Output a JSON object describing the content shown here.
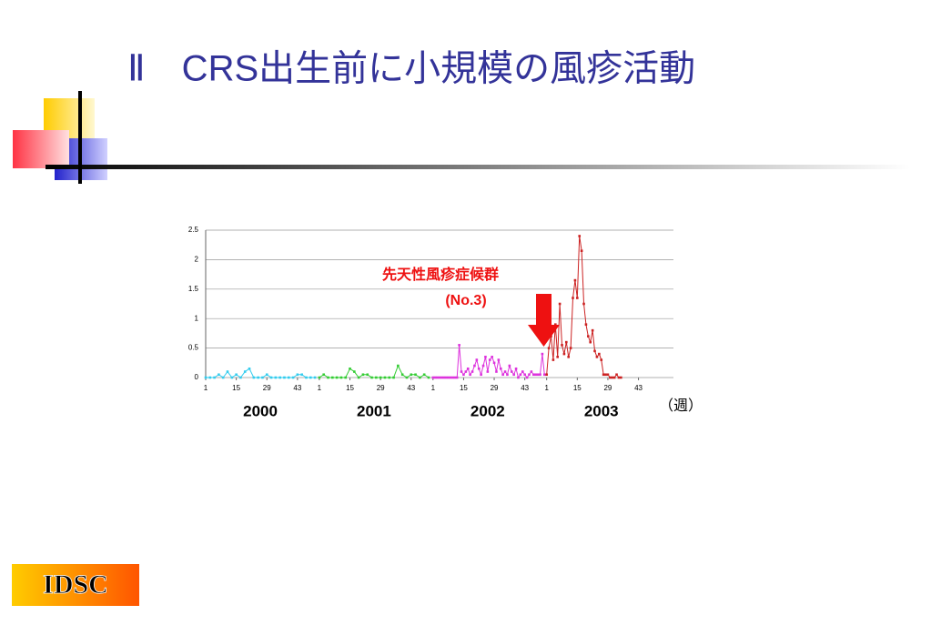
{
  "slide": {
    "title": "Ⅱ　CRS出生前に小規模の風疹活動",
    "logo": "IDSC"
  },
  "chart_data": {
    "type": "line",
    "annotation": [
      "先天性風疹症候群",
      "(No.3)"
    ],
    "x_label": "（週）",
    "year_labels": [
      "2000",
      "2001",
      "2002",
      "2003"
    ],
    "xlim": [
      1,
      215
    ],
    "xticks": [
      1,
      15,
      29,
      43,
      {
        "value": 53,
        "label": "1"
      },
      {
        "value": 67,
        "label": "15"
      },
      {
        "value": 81,
        "label": "29"
      },
      {
        "value": 95,
        "label": "43"
      },
      {
        "value": 105,
        "label": "1"
      },
      {
        "value": 119,
        "label": "15"
      },
      {
        "value": 133,
        "label": "29"
      },
      {
        "value": 147,
        "label": "43"
      },
      {
        "value": 157,
        "label": "1"
      },
      {
        "value": 171,
        "label": "15"
      },
      {
        "value": 185,
        "label": "29"
      },
      {
        "value": 199,
        "label": "43"
      }
    ],
    "ylim": [
      0,
      2.5
    ],
    "yticks": [
      0,
      0.5,
      1,
      1.5,
      2,
      2.5
    ],
    "grid": true,
    "series": [
      {
        "name": "2000",
        "color": "#33ccee",
        "x": [
          1,
          3,
          5,
          7,
          9,
          11,
          13,
          15,
          17,
          19,
          21,
          23,
          25,
          27,
          29,
          31,
          33,
          35,
          37,
          39,
          41,
          43,
          45,
          47,
          49,
          51
        ],
        "values": [
          0,
          0,
          0,
          0.05,
          0,
          0.1,
          0,
          0.05,
          0,
          0.1,
          0.15,
          0,
          0,
          0,
          0.05,
          0,
          0,
          0,
          0,
          0,
          0,
          0.05,
          0.05,
          0,
          0,
          0
        ]
      },
      {
        "name": "2001",
        "color": "#33cc33",
        "x": [
          53,
          55,
          57,
          59,
          61,
          63,
          65,
          67,
          69,
          71,
          73,
          75,
          77,
          79,
          81,
          83,
          85,
          87,
          89,
          91,
          93,
          95,
          97,
          99,
          101,
          103
        ],
        "values": [
          0,
          0.05,
          0,
          0,
          0,
          0,
          0,
          0.15,
          0.1,
          0,
          0.05,
          0.05,
          0,
          0,
          0,
          0,
          0,
          0,
          0.2,
          0.05,
          0,
          0.05,
          0.05,
          0,
          0.05,
          0
        ]
      },
      {
        "name": "2002",
        "color": "#dd33dd",
        "x": [
          105,
          106,
          107,
          108,
          109,
          110,
          111,
          112,
          113,
          114,
          115,
          116,
          117,
          118,
          119,
          120,
          121,
          122,
          123,
          124,
          125,
          126,
          127,
          128,
          129,
          130,
          131,
          132,
          133,
          134,
          135,
          136,
          137,
          138,
          139,
          140,
          141,
          142,
          143,
          144,
          145,
          146,
          147,
          148,
          149,
          150,
          151,
          152,
          153,
          154,
          155,
          156
        ],
        "values": [
          0,
          0,
          0,
          0,
          0,
          0,
          0,
          0,
          0,
          0,
          0,
          0,
          0.55,
          0.1,
          0.05,
          0.1,
          0.15,
          0.05,
          0.1,
          0.2,
          0.3,
          0.15,
          0.05,
          0.2,
          0.35,
          0.1,
          0.3,
          0.35,
          0.25,
          0.1,
          0.3,
          0.15,
          0.05,
          0.1,
          0.05,
          0.2,
          0.1,
          0.05,
          0.15,
          0,
          0.05,
          0.1,
          0.05,
          0,
          0.05,
          0.1,
          0.05,
          0.05,
          0.05,
          0.05,
          0.4,
          0.05
        ]
      },
      {
        "name": "2003",
        "color": "#cc2222",
        "x": [
          157,
          158,
          159,
          160,
          161,
          162,
          163,
          164,
          165,
          166,
          167,
          168,
          169,
          170,
          171,
          172,
          173,
          174,
          175,
          176,
          177,
          178,
          179,
          180,
          181,
          182,
          183,
          184,
          185,
          186,
          187,
          188,
          189,
          190,
          191
        ],
        "values": [
          0.05,
          0.5,
          0.7,
          0.3,
          0.9,
          0.35,
          1.25,
          0.55,
          0.4,
          0.6,
          0.35,
          0.5,
          1.35,
          1.65,
          1.35,
          2.4,
          2.15,
          1.25,
          0.9,
          0.7,
          0.6,
          0.8,
          0.45,
          0.35,
          0.4,
          0.3,
          0.05,
          0.05,
          0.05,
          0,
          0,
          0,
          0.05,
          0,
          0
        ]
      }
    ]
  }
}
